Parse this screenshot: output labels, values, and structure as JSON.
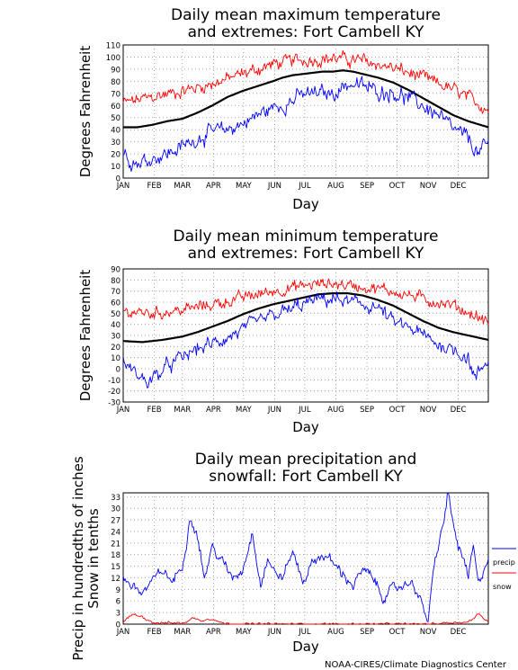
{
  "footer": "NOAA-CIRES/Climate Diagnostics Center",
  "colors": {
    "max": "#ff0000",
    "min": "#0000ff",
    "mean": "#000000",
    "grid": "#909090"
  },
  "months": [
    "JAN",
    "FEB",
    "MAR",
    "APR",
    "MAY",
    "JUN",
    "JUL",
    "AUG",
    "SEP",
    "OCT",
    "NOV",
    "DEC"
  ],
  "chart_data": [
    {
      "type": "line",
      "title": [
        "Daily mean maximum temperature",
        "and extremes: Fort Cambell KY"
      ],
      "xlabel": "Day",
      "ylabel": [
        "Degrees Fahrenheit"
      ],
      "ylim": [
        0,
        110
      ],
      "yticks": [
        0,
        10,
        20,
        30,
        40,
        50,
        60,
        70,
        80,
        90,
        100,
        110
      ],
      "grid": true,
      "series": [
        {
          "role": "max",
          "x": [
            1,
            30,
            60,
            90,
            120,
            150,
            170,
            190,
            210,
            240,
            270,
            300,
            330,
            365
          ],
          "values": [
            62,
            67,
            72,
            78,
            86,
            94,
            97,
            98,
            99,
            97,
            91,
            83,
            73,
            57
          ]
        },
        {
          "role": "mean",
          "x": [
            1,
            15,
            30,
            45,
            60,
            75,
            90,
            105,
            120,
            135,
            150,
            160,
            170,
            180,
            190,
            200,
            210,
            220,
            230,
            240,
            255,
            270,
            285,
            300,
            315,
            330,
            345,
            365
          ],
          "values": [
            42,
            42,
            44,
            47,
            49,
            54,
            60,
            67,
            72,
            76,
            80,
            83,
            85,
            86,
            87,
            88,
            88,
            89,
            88,
            86,
            83,
            79,
            73,
            66,
            59,
            52,
            47,
            42
          ]
        },
        {
          "role": "min",
          "x": [
            1,
            15,
            30,
            45,
            60,
            75,
            90,
            105,
            120,
            135,
            150,
            165,
            180,
            195,
            210,
            225,
            240,
            255,
            270,
            285,
            300,
            315,
            330,
            345,
            355,
            365
          ],
          "values": [
            20,
            12,
            17,
            20,
            26,
            33,
            38,
            40,
            45,
            52,
            58,
            62,
            69,
            70,
            70,
            78,
            76,
            72,
            71,
            66,
            60,
            52,
            40,
            33,
            20,
            28
          ]
        }
      ]
    },
    {
      "type": "line",
      "title": [
        "Daily mean minimum temperature",
        "and extremes: Fort Cambell KY"
      ],
      "xlabel": "Day",
      "ylabel": [
        "Degrees Fahrenheit"
      ],
      "ylim": [
        -30,
        90
      ],
      "yticks": [
        -30,
        -20,
        -10,
        0,
        10,
        20,
        30,
        40,
        50,
        60,
        70,
        80,
        90
      ],
      "grid": true,
      "series": [
        {
          "role": "max",
          "x": [
            1,
            30,
            60,
            90,
            120,
            150,
            170,
            190,
            210,
            240,
            270,
            300,
            330,
            365
          ],
          "values": [
            52,
            50,
            53,
            58,
            64,
            70,
            73,
            76,
            77,
            74,
            70,
            63,
            57,
            42
          ]
        },
        {
          "role": "mean",
          "x": [
            1,
            20,
            40,
            60,
            75,
            90,
            105,
            120,
            135,
            150,
            165,
            180,
            195,
            210,
            225,
            240,
            255,
            270,
            285,
            300,
            315,
            330,
            345,
            365
          ],
          "values": [
            25,
            24,
            26,
            29,
            33,
            38,
            43,
            49,
            54,
            58,
            61,
            64,
            67,
            68,
            68,
            66,
            62,
            57,
            50,
            43,
            37,
            33,
            30,
            26
          ]
        },
        {
          "role": "min",
          "x": [
            1,
            15,
            25,
            35,
            50,
            60,
            75,
            90,
            105,
            120,
            135,
            150,
            165,
            180,
            195,
            210,
            225,
            240,
            255,
            270,
            285,
            300,
            315,
            330,
            345,
            352,
            358,
            365
          ],
          "values": [
            5,
            -5,
            -12,
            -5,
            5,
            10,
            18,
            22,
            28,
            35,
            42,
            48,
            52,
            58,
            62,
            63,
            60,
            58,
            55,
            42,
            37,
            30,
            22,
            18,
            10,
            -10,
            0,
            8
          ]
        }
      ]
    },
    {
      "type": "line",
      "title": [
        "Daily mean precipitation and",
        "snowfall: Fort Cambell KY"
      ],
      "xlabel": "Day",
      "ylabel": [
        "Precip in hundredths of inches",
        "Snow in tenths"
      ],
      "ylim": [
        0,
        34
      ],
      "yticks": [
        0,
        3,
        6,
        9,
        12,
        15,
        18,
        21,
        24,
        27,
        30,
        33
      ],
      "grid": true,
      "legend": {
        "position": "right",
        "entries": [
          {
            "role": "precip",
            "label": "precip"
          },
          {
            "role": "snow",
            "label": "snow"
          }
        ]
      },
      "series": [
        {
          "role": "precip",
          "x": [
            1,
            10,
            20,
            30,
            40,
            50,
            60,
            68,
            75,
            82,
            90,
            100,
            110,
            120,
            130,
            138,
            145,
            150,
            160,
            170,
            180,
            190,
            200,
            210,
            220,
            230,
            240,
            250,
            260,
            270,
            280,
            290,
            300,
            305,
            310,
            315,
            320,
            325,
            330,
            335,
            340,
            345,
            350,
            355,
            360,
            365
          ],
          "values": [
            12,
            10,
            8,
            11,
            14,
            11,
            15,
            28,
            23,
            12,
            20,
            16,
            12,
            14,
            24,
            10,
            17,
            14,
            12,
            19,
            11,
            16,
            18,
            16,
            13,
            10,
            14,
            12,
            7,
            9,
            10,
            11,
            4,
            1,
            13,
            20,
            26,
            34,
            26,
            20,
            17,
            12,
            20,
            10,
            14,
            17
          ]
        },
        {
          "role": "snow",
          "x": [
            1,
            10,
            20,
            30,
            40,
            50,
            60,
            70,
            80,
            90,
            100,
            110,
            120,
            140,
            300,
            330,
            345,
            355,
            365
          ],
          "values": [
            0.5,
            2.5,
            2,
            0.5,
            0.3,
            0.4,
            0.2,
            1.5,
            1,
            1.5,
            0.2,
            0.1,
            0,
            0,
            0,
            0.5,
            0.5,
            2.5,
            0.8
          ]
        }
      ]
    }
  ]
}
